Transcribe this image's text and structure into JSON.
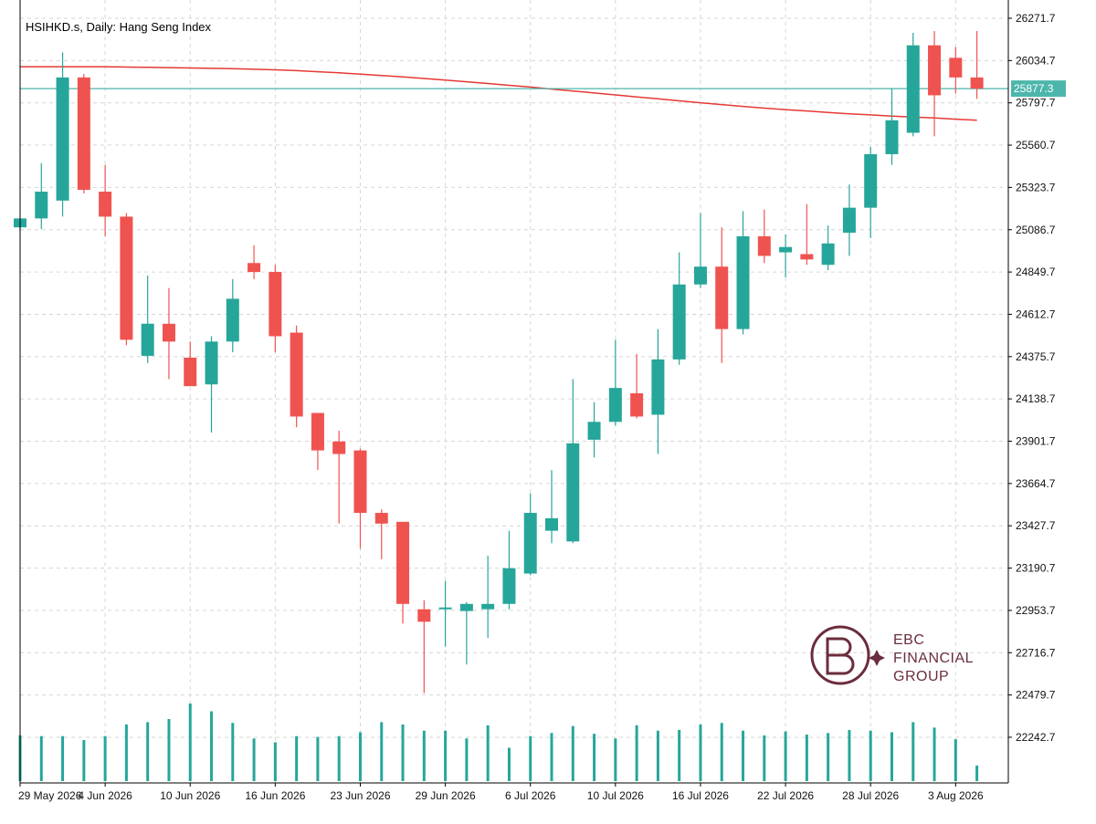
{
  "chart_data": {
    "type": "candlestick",
    "title": "HSIHKD.s, Daily:  Hang Seng Index",
    "y_ticks": [
      "26271.7",
      "26034.7",
      "25797.7",
      "25560.7",
      "25323.7",
      "25086.7",
      "24849.7",
      "24612.7",
      "24375.7",
      "24138.7",
      "23901.7",
      "23664.7",
      "23427.7",
      "23190.7",
      "22953.7",
      "22716.7",
      "22479.7",
      "22242.7"
    ],
    "ylim": [
      22100,
      26300
    ],
    "x_tick_labels": [
      {
        "index": 0,
        "label": "29 May 2026"
      },
      {
        "index": 4,
        "label": "4 Jun 2026"
      },
      {
        "index": 8,
        "label": "10 Jun 2026"
      },
      {
        "index": 12,
        "label": "16 Jun 2026"
      },
      {
        "index": 16,
        "label": "23 Jun 2026"
      },
      {
        "index": 20,
        "label": "29 Jun 2026"
      },
      {
        "index": 24,
        "label": "6 Jul 2026"
      },
      {
        "index": 28,
        "label": "10 Jul 2026"
      },
      {
        "index": 32,
        "label": "16 Jul 2026"
      },
      {
        "index": 36,
        "label": "22 Jul 2026"
      },
      {
        "index": 40,
        "label": "28 Jul 2026"
      },
      {
        "index": 44,
        "label": "3 Aug 2026"
      }
    ],
    "candles": [
      {
        "o": 25100,
        "h": 25150,
        "l": 25080,
        "c": 25150
      },
      {
        "o": 25150,
        "h": 25460,
        "l": 25090,
        "c": 25300
      },
      {
        "o": 25250,
        "h": 26080,
        "l": 25160,
        "c": 25940
      },
      {
        "o": 25940,
        "h": 25960,
        "l": 25290,
        "c": 25310
      },
      {
        "o": 25300,
        "h": 25450,
        "l": 25050,
        "c": 25160
      },
      {
        "o": 25160,
        "h": 25180,
        "l": 24440,
        "c": 24470
      },
      {
        "o": 24380,
        "h": 24830,
        "l": 24340,
        "c": 24560
      },
      {
        "o": 24560,
        "h": 24760,
        "l": 24250,
        "c": 24460
      },
      {
        "o": 24370,
        "h": 24460,
        "l": 24230,
        "c": 24210
      },
      {
        "o": 24220,
        "h": 24490,
        "l": 23950,
        "c": 24460
      },
      {
        "o": 24460,
        "h": 24810,
        "l": 24400,
        "c": 24700
      },
      {
        "o": 24900,
        "h": 25000,
        "l": 24810,
        "c": 24850
      },
      {
        "o": 24850,
        "h": 24890,
        "l": 24400,
        "c": 24490
      },
      {
        "o": 24510,
        "h": 24550,
        "l": 23980,
        "c": 24040
      },
      {
        "o": 24060,
        "h": 24060,
        "l": 23740,
        "c": 23850
      },
      {
        "o": 23900,
        "h": 23960,
        "l": 23440,
        "c": 23830
      },
      {
        "o": 23850,
        "h": 23860,
        "l": 23300,
        "c": 23500
      },
      {
        "o": 23500,
        "h": 23520,
        "l": 23240,
        "c": 23440
      },
      {
        "o": 23450,
        "h": 23450,
        "l": 22880,
        "c": 22990
      },
      {
        "o": 22960,
        "h": 23010,
        "l": 22490,
        "c": 22890
      },
      {
        "o": 22960,
        "h": 23120,
        "l": 22750,
        "c": 22970
      },
      {
        "o": 22950,
        "h": 23000,
        "l": 22650,
        "c": 22990
      },
      {
        "o": 22960,
        "h": 23260,
        "l": 22800,
        "c": 22990
      },
      {
        "o": 22990,
        "h": 23400,
        "l": 22960,
        "c": 23190
      },
      {
        "o": 23160,
        "h": 23610,
        "l": 23150,
        "c": 23500
      },
      {
        "o": 23400,
        "h": 23740,
        "l": 23330,
        "c": 23470
      },
      {
        "o": 23340,
        "h": 24250,
        "l": 23330,
        "c": 23890
      },
      {
        "o": 23910,
        "h": 24120,
        "l": 23810,
        "c": 24010
      },
      {
        "o": 24010,
        "h": 24470,
        "l": 23990,
        "c": 24200
      },
      {
        "o": 24170,
        "h": 24390,
        "l": 24030,
        "c": 24040
      },
      {
        "o": 24050,
        "h": 24530,
        "l": 23830,
        "c": 24360
      },
      {
        "o": 24360,
        "h": 24960,
        "l": 24330,
        "c": 24780
      },
      {
        "o": 24780,
        "h": 25180,
        "l": 24760,
        "c": 24880
      },
      {
        "o": 24880,
        "h": 25100,
        "l": 24340,
        "c": 24530
      },
      {
        "o": 24530,
        "h": 25190,
        "l": 24500,
        "c": 25050
      },
      {
        "o": 25050,
        "h": 25200,
        "l": 24900,
        "c": 24940
      },
      {
        "o": 24960,
        "h": 25060,
        "l": 24820,
        "c": 24990
      },
      {
        "o": 24950,
        "h": 25230,
        "l": 24890,
        "c": 24920
      },
      {
        "o": 24890,
        "h": 25110,
        "l": 24860,
        "c": 25010
      },
      {
        "o": 25070,
        "h": 25340,
        "l": 24940,
        "c": 25210
      },
      {
        "o": 25210,
        "h": 25550,
        "l": 25040,
        "c": 25510
      },
      {
        "o": 25510,
        "h": 25880,
        "l": 25450,
        "c": 25700
      },
      {
        "o": 25630,
        "h": 26190,
        "l": 25610,
        "c": 26120
      },
      {
        "o": 26120,
        "h": 26200,
        "l": 25610,
        "c": 25840
      },
      {
        "o": 26050,
        "h": 26110,
        "l": 25850,
        "c": 25940
      },
      {
        "o": 25940,
        "h": 26200,
        "l": 25820,
        "c": 25877.3
      }
    ],
    "ma": [
      26000,
      26000,
      26000,
      26000,
      26000,
      25998,
      25997,
      25995,
      25993,
      25991,
      25989,
      25986,
      25983,
      25978,
      25972,
      25966,
      25959,
      25951,
      25943,
      25934,
      25925,
      25916,
      25906,
      25896,
      25886,
      25875,
      25864,
      25853,
      25842,
      25831,
      25820,
      25809,
      25798,
      25788,
      25778,
      25768,
      25760,
      25752,
      25744,
      25736,
      25730,
      25723,
      25718,
      25713,
      25706,
      25700
    ],
    "volume": [
      0.59,
      0.58,
      0.58,
      0.53,
      0.58,
      0.73,
      0.76,
      0.8,
      1.0,
      0.9,
      0.75,
      0.55,
      0.5,
      0.58,
      0.57,
      0.58,
      0.63,
      0.76,
      0.73,
      0.65,
      0.65,
      0.55,
      0.72,
      0.43,
      0.58,
      0.62,
      0.71,
      0.61,
      0.55,
      0.72,
      0.65,
      0.66,
      0.73,
      0.75,
      0.65,
      0.59,
      0.64,
      0.6,
      0.62,
      0.66,
      0.65,
      0.63,
      0.76,
      0.69,
      0.54,
      0.2
    ],
    "current_price": "25877.3",
    "current_price_value": 25877.3,
    "colors": {
      "bull": "#26a69a",
      "bear": "#ef5350",
      "ma": "#e53935",
      "price_line": "#4db6ac",
      "grid": "#d6d6d6"
    },
    "grid": true
  },
  "watermark": {
    "line1": "EBC",
    "line2": "FINANCIAL",
    "line3": "GROUP",
    "color": "#6b2d3c"
  }
}
